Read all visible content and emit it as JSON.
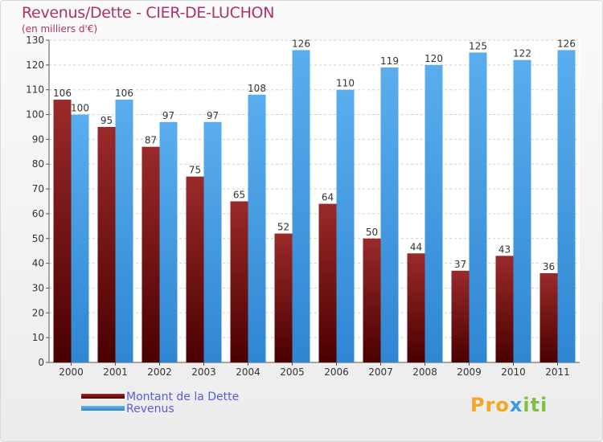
{
  "title": "Revenus/Dette - CIER-DE-LUCHON",
  "subtitle": "(en milliers d'€)",
  "logo": {
    "part1": "Pro",
    "part2": "x",
    "part3": "iti"
  },
  "colors": {
    "debt": "#6e0f0f",
    "revenue": "#3a9be0",
    "title": "#b0306a",
    "legend_text": "#5b5bd6"
  },
  "chart_data": {
    "type": "bar",
    "title": "Revenus/Dette - CIER-DE-LUCHON",
    "subtitle": "(en milliers d'€)",
    "xlabel": "",
    "ylabel": "",
    "ylim": [
      0,
      130
    ],
    "yticks": [
      0,
      10,
      20,
      30,
      40,
      50,
      60,
      70,
      80,
      90,
      100,
      110,
      120,
      130
    ],
    "grid": true,
    "legend_position": "bottom-left",
    "categories": [
      "2000",
      "2001",
      "2002",
      "2003",
      "2004",
      "2005",
      "2006",
      "2007",
      "2008",
      "2009",
      "2010",
      "2011"
    ],
    "series": [
      {
        "name": "Montant de la Dette",
        "values": [
          106,
          95,
          87,
          75,
          65,
          52,
          64,
          50,
          44,
          37,
          43,
          36
        ]
      },
      {
        "name": "Revenus",
        "values": [
          100,
          106,
          97,
          97,
          108,
          126,
          110,
          119,
          120,
          125,
          122,
          126
        ]
      }
    ]
  }
}
